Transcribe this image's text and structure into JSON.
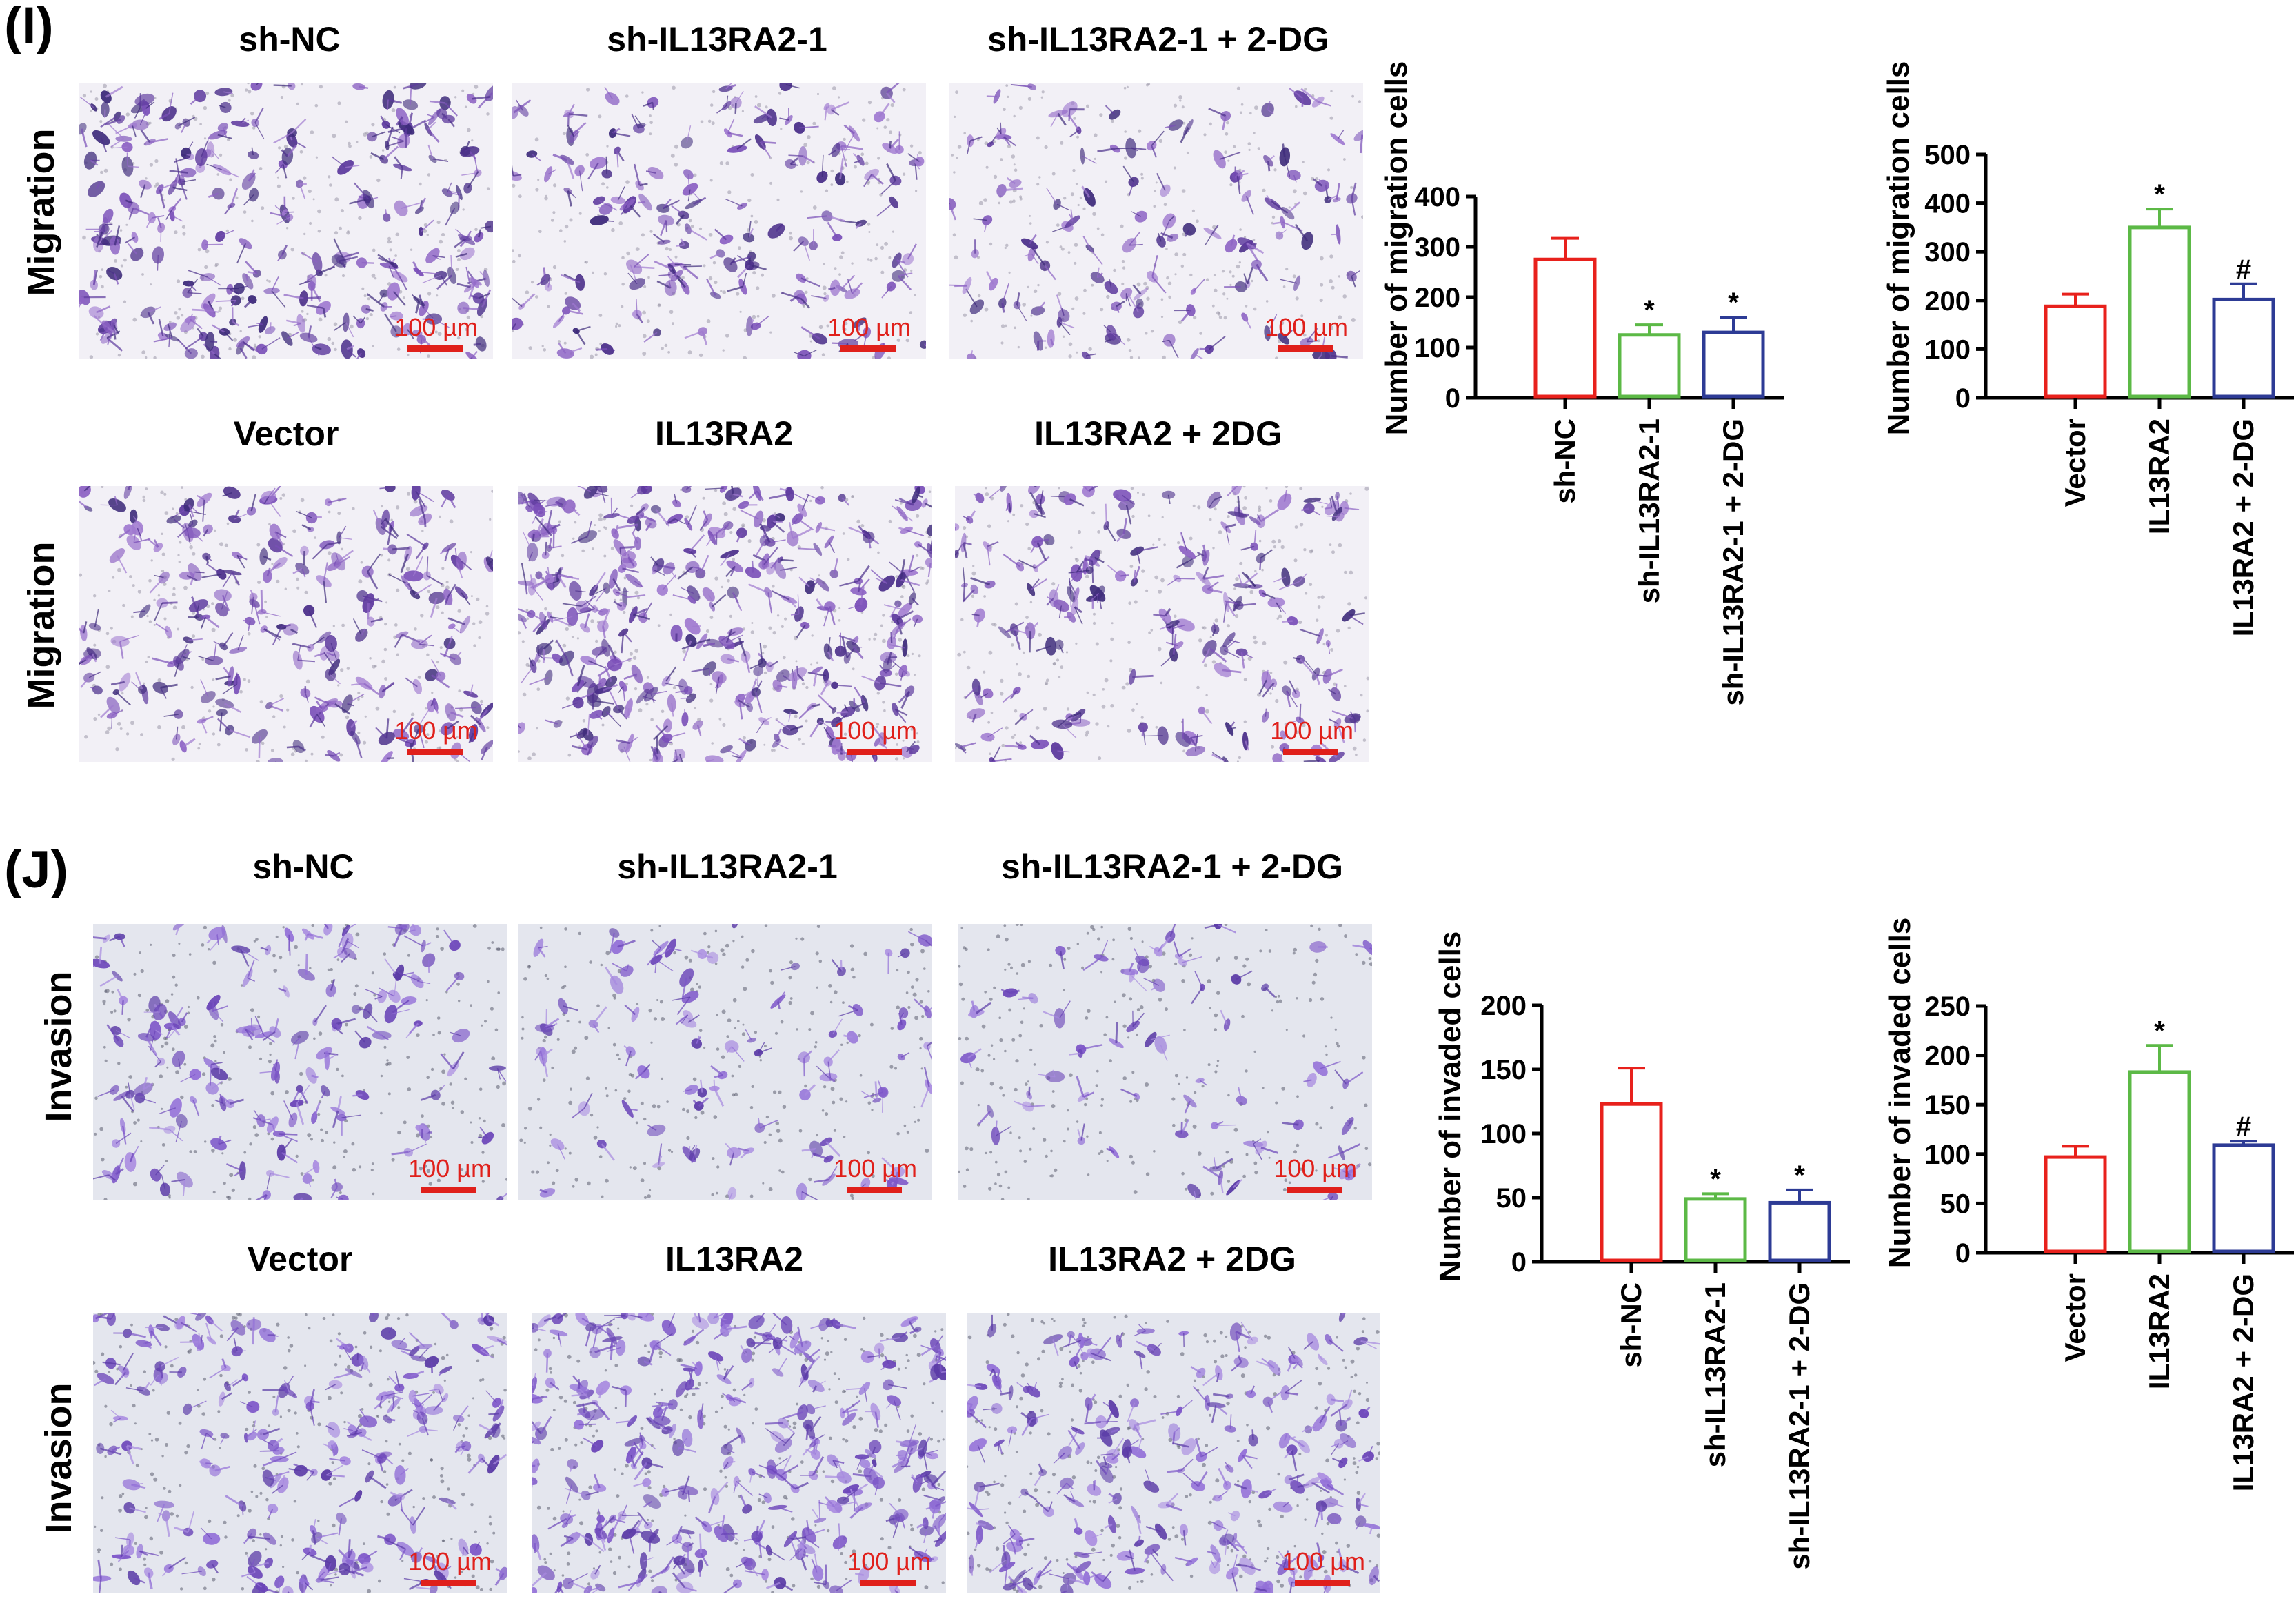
{
  "panel_I": {
    "label": "(I)",
    "top_titles": [
      "sh-NC",
      "sh-IL13RA2-1",
      "sh-IL13RA2-1 + 2-DG"
    ],
    "bottom_titles": [
      "Vector",
      "IL13RA2",
      "IL13RA2 + 2DG"
    ],
    "row_label": "Migration",
    "scale": "100 µm"
  },
  "panel_J": {
    "label": "(J)",
    "top_titles": [
      "sh-NC",
      "sh-IL13RA2-1",
      "sh-IL13RA2-1 + 2-DG"
    ],
    "bottom_titles": [
      "Vector",
      "IL13RA2",
      "IL13RA2 + 2DG"
    ],
    "row_label": "Invasion",
    "scale": "100 µm"
  },
  "colors": {
    "red": "#e8211c",
    "green": "#5cb946",
    "blue": "#2d3b95",
    "stain_migration": "#5e3a9e",
    "stain_invasion": "#7c55c8",
    "scale": "#e0201b"
  },
  "chart_data": [
    {
      "id": "I-left",
      "type": "bar",
      "categories": [
        "sh-NC",
        "sh-IL13RA2-1",
        "sh-IL13RA2-1 + 2-DG"
      ],
      "values": [
        275,
        125,
        130
      ],
      "errors": [
        42,
        20,
        30
      ],
      "annotations": [
        "",
        "*",
        "*"
      ],
      "colors": [
        "#e8211c",
        "#5cb946",
        "#2d3b95"
      ],
      "ylabel": "Number of migration cells",
      "ylim": [
        0,
        400
      ],
      "yticks": [
        "0",
        "100",
        "200",
        "300",
        "400"
      ]
    },
    {
      "id": "I-right",
      "type": "bar",
      "categories": [
        "Vector",
        "IL13RA2",
        "IL13RA2 + 2-DG"
      ],
      "values": [
        188,
        350,
        202
      ],
      "errors": [
        25,
        38,
        32
      ],
      "annotations": [
        "",
        "*",
        "#"
      ],
      "colors": [
        "#e8211c",
        "#5cb946",
        "#2d3b95"
      ],
      "ylabel": "Number of migration cells",
      "ylim": [
        0,
        500
      ],
      "yticks": [
        "0",
        "100",
        "200",
        "300",
        "400",
        "500"
      ]
    },
    {
      "id": "J-left",
      "type": "bar",
      "categories": [
        "sh-NC",
        "sh-IL13RA2-1",
        "sh-IL13RA2-1 + 2-DG"
      ],
      "values": [
        123,
        49,
        46
      ],
      "errors": [
        28,
        4,
        10
      ],
      "annotations": [
        "",
        "*",
        "*"
      ],
      "colors": [
        "#e8211c",
        "#5cb946",
        "#2d3b95"
      ],
      "ylabel": "Number of invaded cells",
      "ylim": [
        0,
        200
      ],
      "yticks": [
        "0",
        "50",
        "100",
        "150",
        "200"
      ]
    },
    {
      "id": "J-right",
      "type": "bar",
      "categories": [
        "Vector",
        "IL13RA2",
        "IL13RA2 + 2-DG"
      ],
      "values": [
        97,
        183,
        109
      ],
      "errors": [
        11,
        27,
        4
      ],
      "annotations": [
        "",
        "*",
        "#"
      ],
      "colors": [
        "#e8211c",
        "#5cb946",
        "#2d3b95"
      ],
      "ylabel": "Number of invaded cells",
      "ylim": [
        0,
        250
      ],
      "yticks": [
        "0",
        "50",
        "100",
        "150",
        "200",
        "250"
      ]
    }
  ]
}
